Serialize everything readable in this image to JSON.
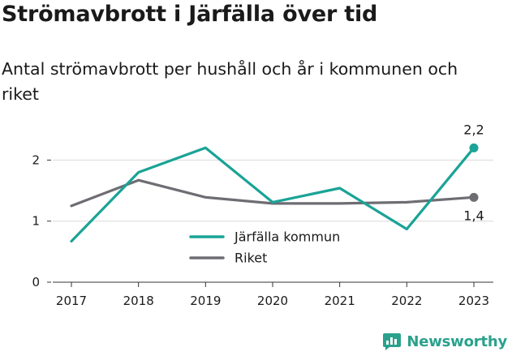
{
  "header": {
    "title": "Strömavbrott i Järfälla över tid",
    "subtitle": "Antal strömavbrott per hushåll och år i kommunen och riket"
  },
  "brand": {
    "name": "Newsworthy",
    "icon": "newsworthy-logo-icon",
    "color": "#2aa18c"
  },
  "chart_data": {
    "type": "line",
    "title": "Strömavbrott i Järfälla över tid",
    "subtitle": "Antal strömavbrott per hushåll och år i kommunen och riket",
    "xlabel": "",
    "ylabel": "",
    "x": [
      "2017",
      "2018",
      "2019",
      "2020",
      "2021",
      "2022",
      "2023"
    ],
    "ylim": [
      0,
      2.5
    ],
    "yticks": [
      0,
      1,
      2
    ],
    "ytick_labels": [
      "0",
      "1",
      "2"
    ],
    "grid": true,
    "legend_position": "center",
    "series": [
      {
        "name": "Järfälla kommun",
        "color": "#1aa396",
        "values": [
          0.67,
          1.8,
          2.2,
          1.31,
          1.54,
          0.87,
          2.2
        ],
        "end_label": "2,2"
      },
      {
        "name": "Riket",
        "color": "#6e6d73",
        "values": [
          1.25,
          1.67,
          1.39,
          1.29,
          1.29,
          1.31,
          1.39
        ],
        "end_label": "1,4"
      }
    ]
  }
}
